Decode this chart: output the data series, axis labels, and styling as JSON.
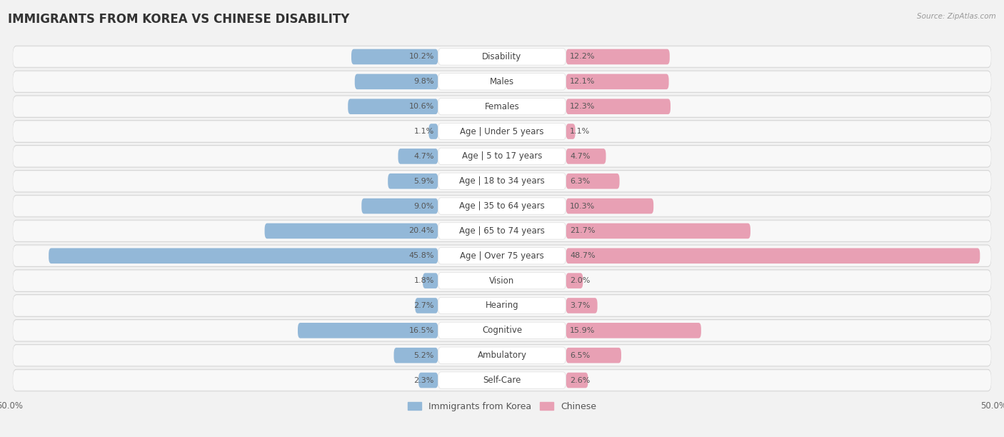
{
  "title": "IMMIGRANTS FROM KOREA VS CHINESE DISABILITY",
  "source": "Source: ZipAtlas.com",
  "categories": [
    "Disability",
    "Males",
    "Females",
    "Age | Under 5 years",
    "Age | 5 to 17 years",
    "Age | 18 to 34 years",
    "Age | 35 to 64 years",
    "Age | 65 to 74 years",
    "Age | Over 75 years",
    "Vision",
    "Hearing",
    "Cognitive",
    "Ambulatory",
    "Self-Care"
  ],
  "korea_values": [
    10.2,
    9.8,
    10.6,
    1.1,
    4.7,
    5.9,
    9.0,
    20.4,
    45.8,
    1.8,
    2.7,
    16.5,
    5.2,
    2.3
  ],
  "chinese_values": [
    12.2,
    12.1,
    12.3,
    1.1,
    4.7,
    6.3,
    10.3,
    21.7,
    48.7,
    2.0,
    3.7,
    15.9,
    6.5,
    2.6
  ],
  "korea_color": "#93b8d8",
  "chinese_color": "#e8a0b4",
  "korea_color_dark": "#6a9fc4",
  "chinese_color_dark": "#d4607a",
  "korea_label": "Immigrants from Korea",
  "chinese_label": "Chinese",
  "max_value": 50.0,
  "bar_height": 0.62,
  "background_color": "#f2f2f2",
  "row_bg_color": "#e8e8e8",
  "row_inner_color": "#fafafa",
  "title_fontsize": 12,
  "label_fontsize": 8.5,
  "value_fontsize": 8,
  "axis_label_fontsize": 8.5
}
